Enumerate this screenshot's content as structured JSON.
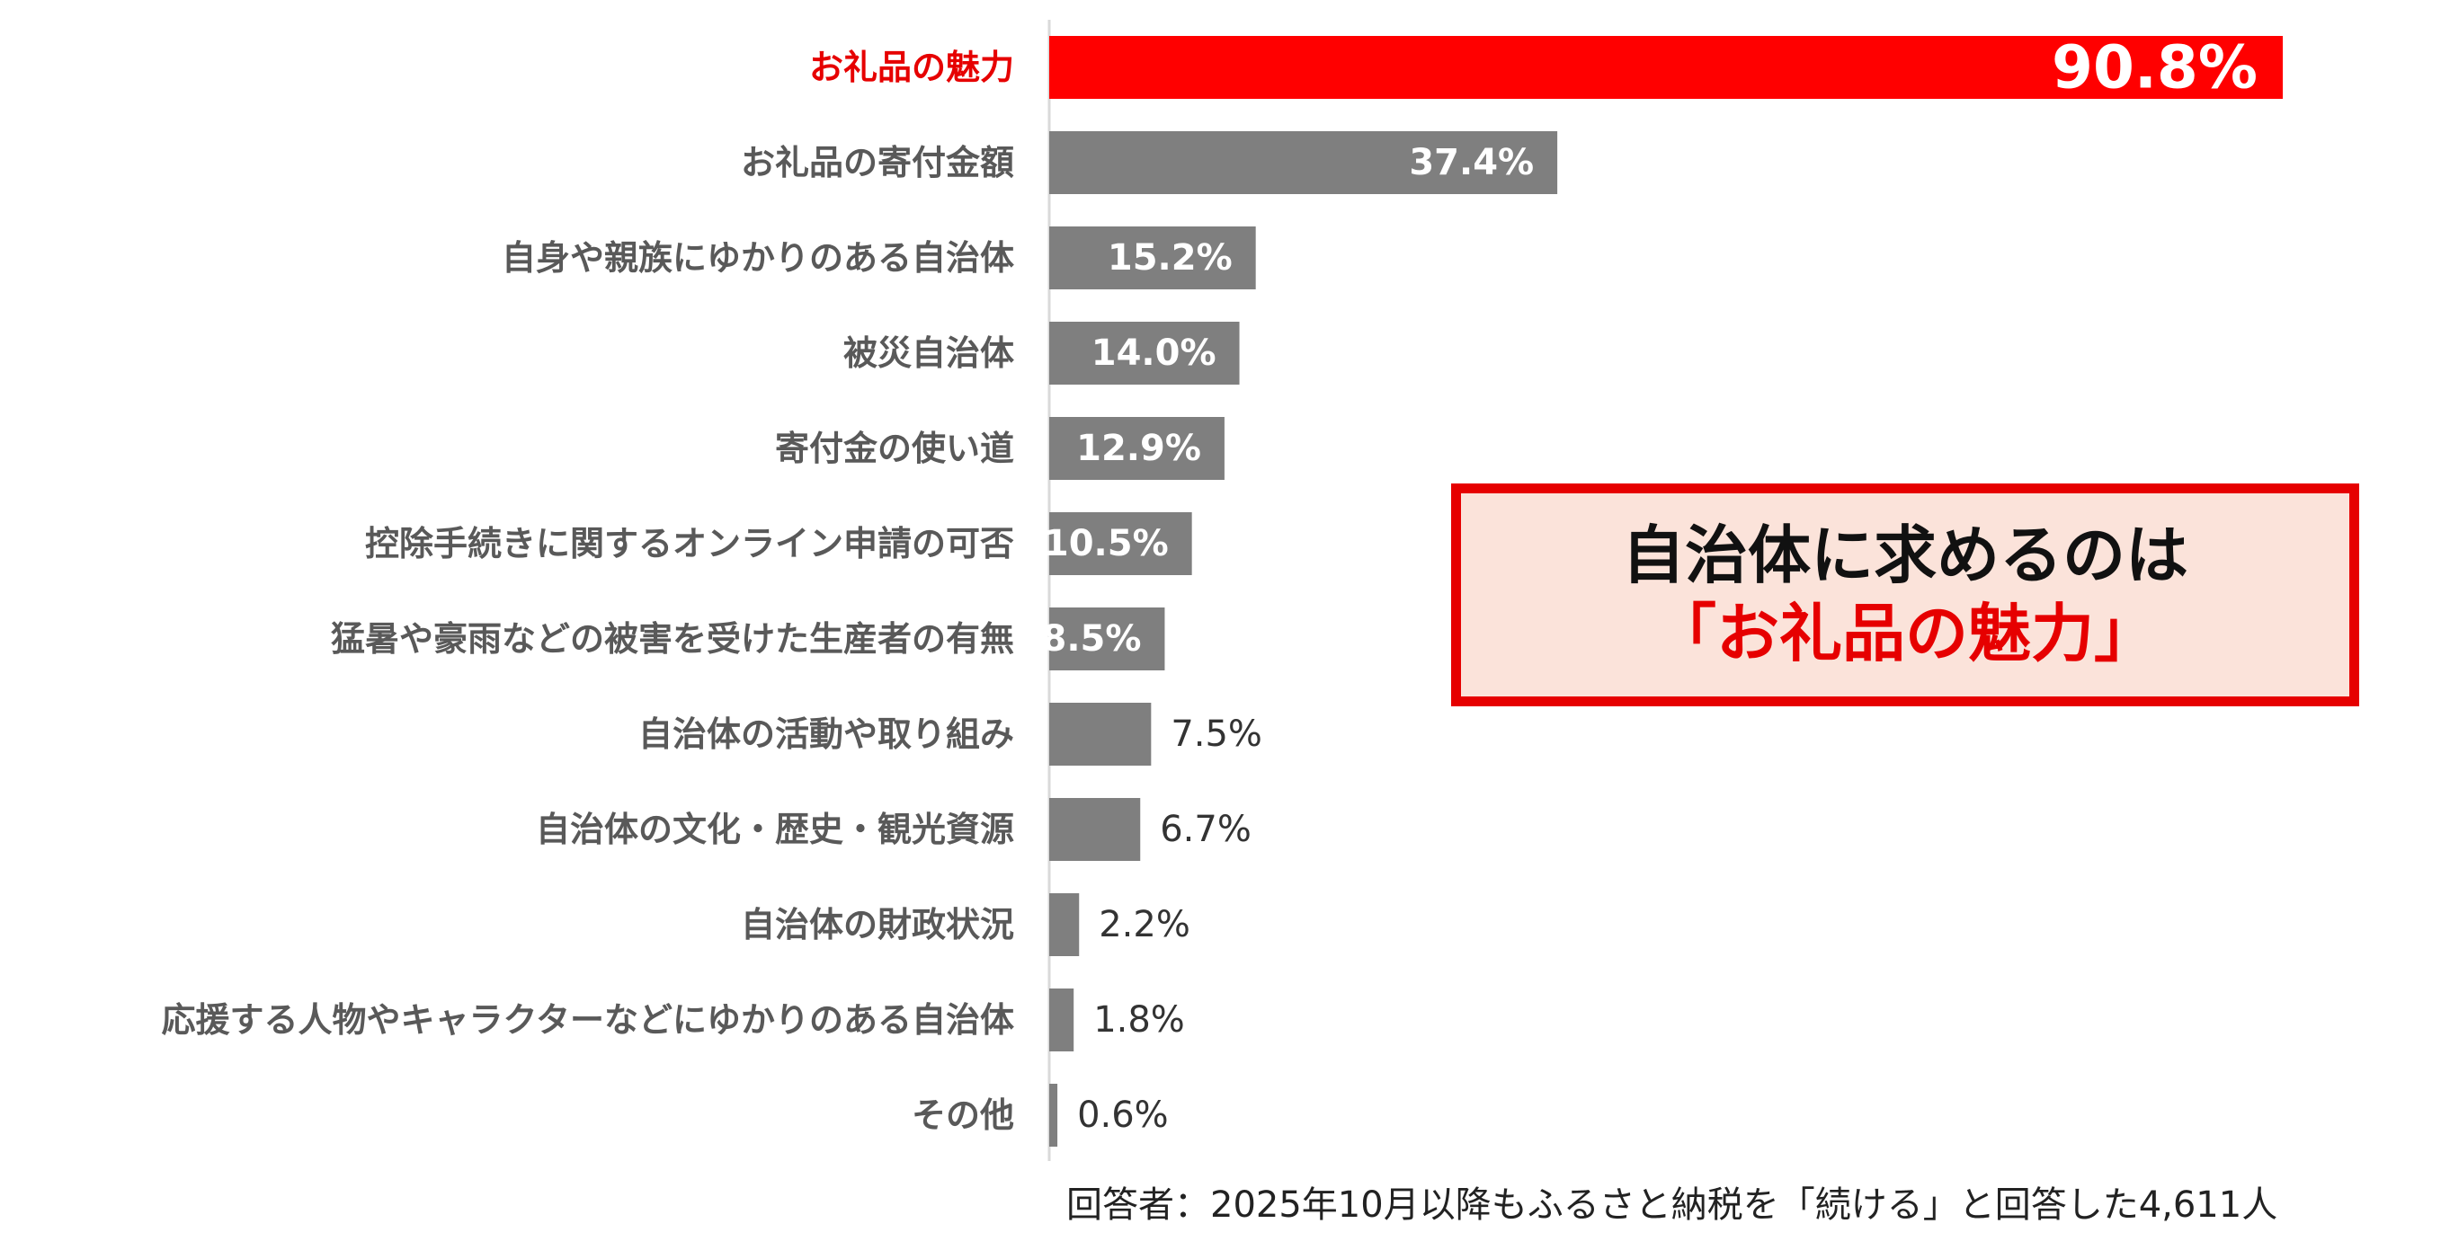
{
  "chart_data": {
    "type": "bar",
    "orientation": "horizontal",
    "categories": [
      "お礼品の魅力",
      "お礼品の寄付金額",
      "自身や親族にゆかりのある自治体",
      "被災自治体",
      "寄付金の使い道",
      "控除手続きに関するオンライン申請の可否",
      "猛暑や豪雨などの被害を受けた生産者の有無",
      "自治体の活動や取り組み",
      "自治体の文化・歴史・観光資源",
      "自治体の財政状況",
      "応援する人物やキャラクターなどにゆかりのある自治体",
      "その他"
    ],
    "values": [
      90.8,
      37.4,
      15.2,
      14.0,
      12.9,
      10.5,
      8.5,
      7.5,
      6.7,
      2.2,
      1.8,
      0.6
    ],
    "value_labels": [
      "90.8%",
      "37.4%",
      "15.2%",
      "14.0%",
      "12.9%",
      "10.5%",
      "8.5%",
      "7.5%",
      "6.7%",
      "2.2%",
      "1.8%",
      "0.6%"
    ],
    "highlight_index": 0,
    "colors": {
      "highlight": "#ff0000",
      "default": "#7f7f7f",
      "axis": "#d9d9d9"
    },
    "xlim": [
      0,
      100
    ],
    "grid": false,
    "legend": "none"
  },
  "callout": {
    "line1": "自治体に求めるのは",
    "line2": "「お礼品の魅力」",
    "border_color": "#e60000",
    "background_color": "#fbe3da"
  },
  "footnote": "回答者：2025年10月以降もふるさと納税を「続ける」と回答した4,611人"
}
